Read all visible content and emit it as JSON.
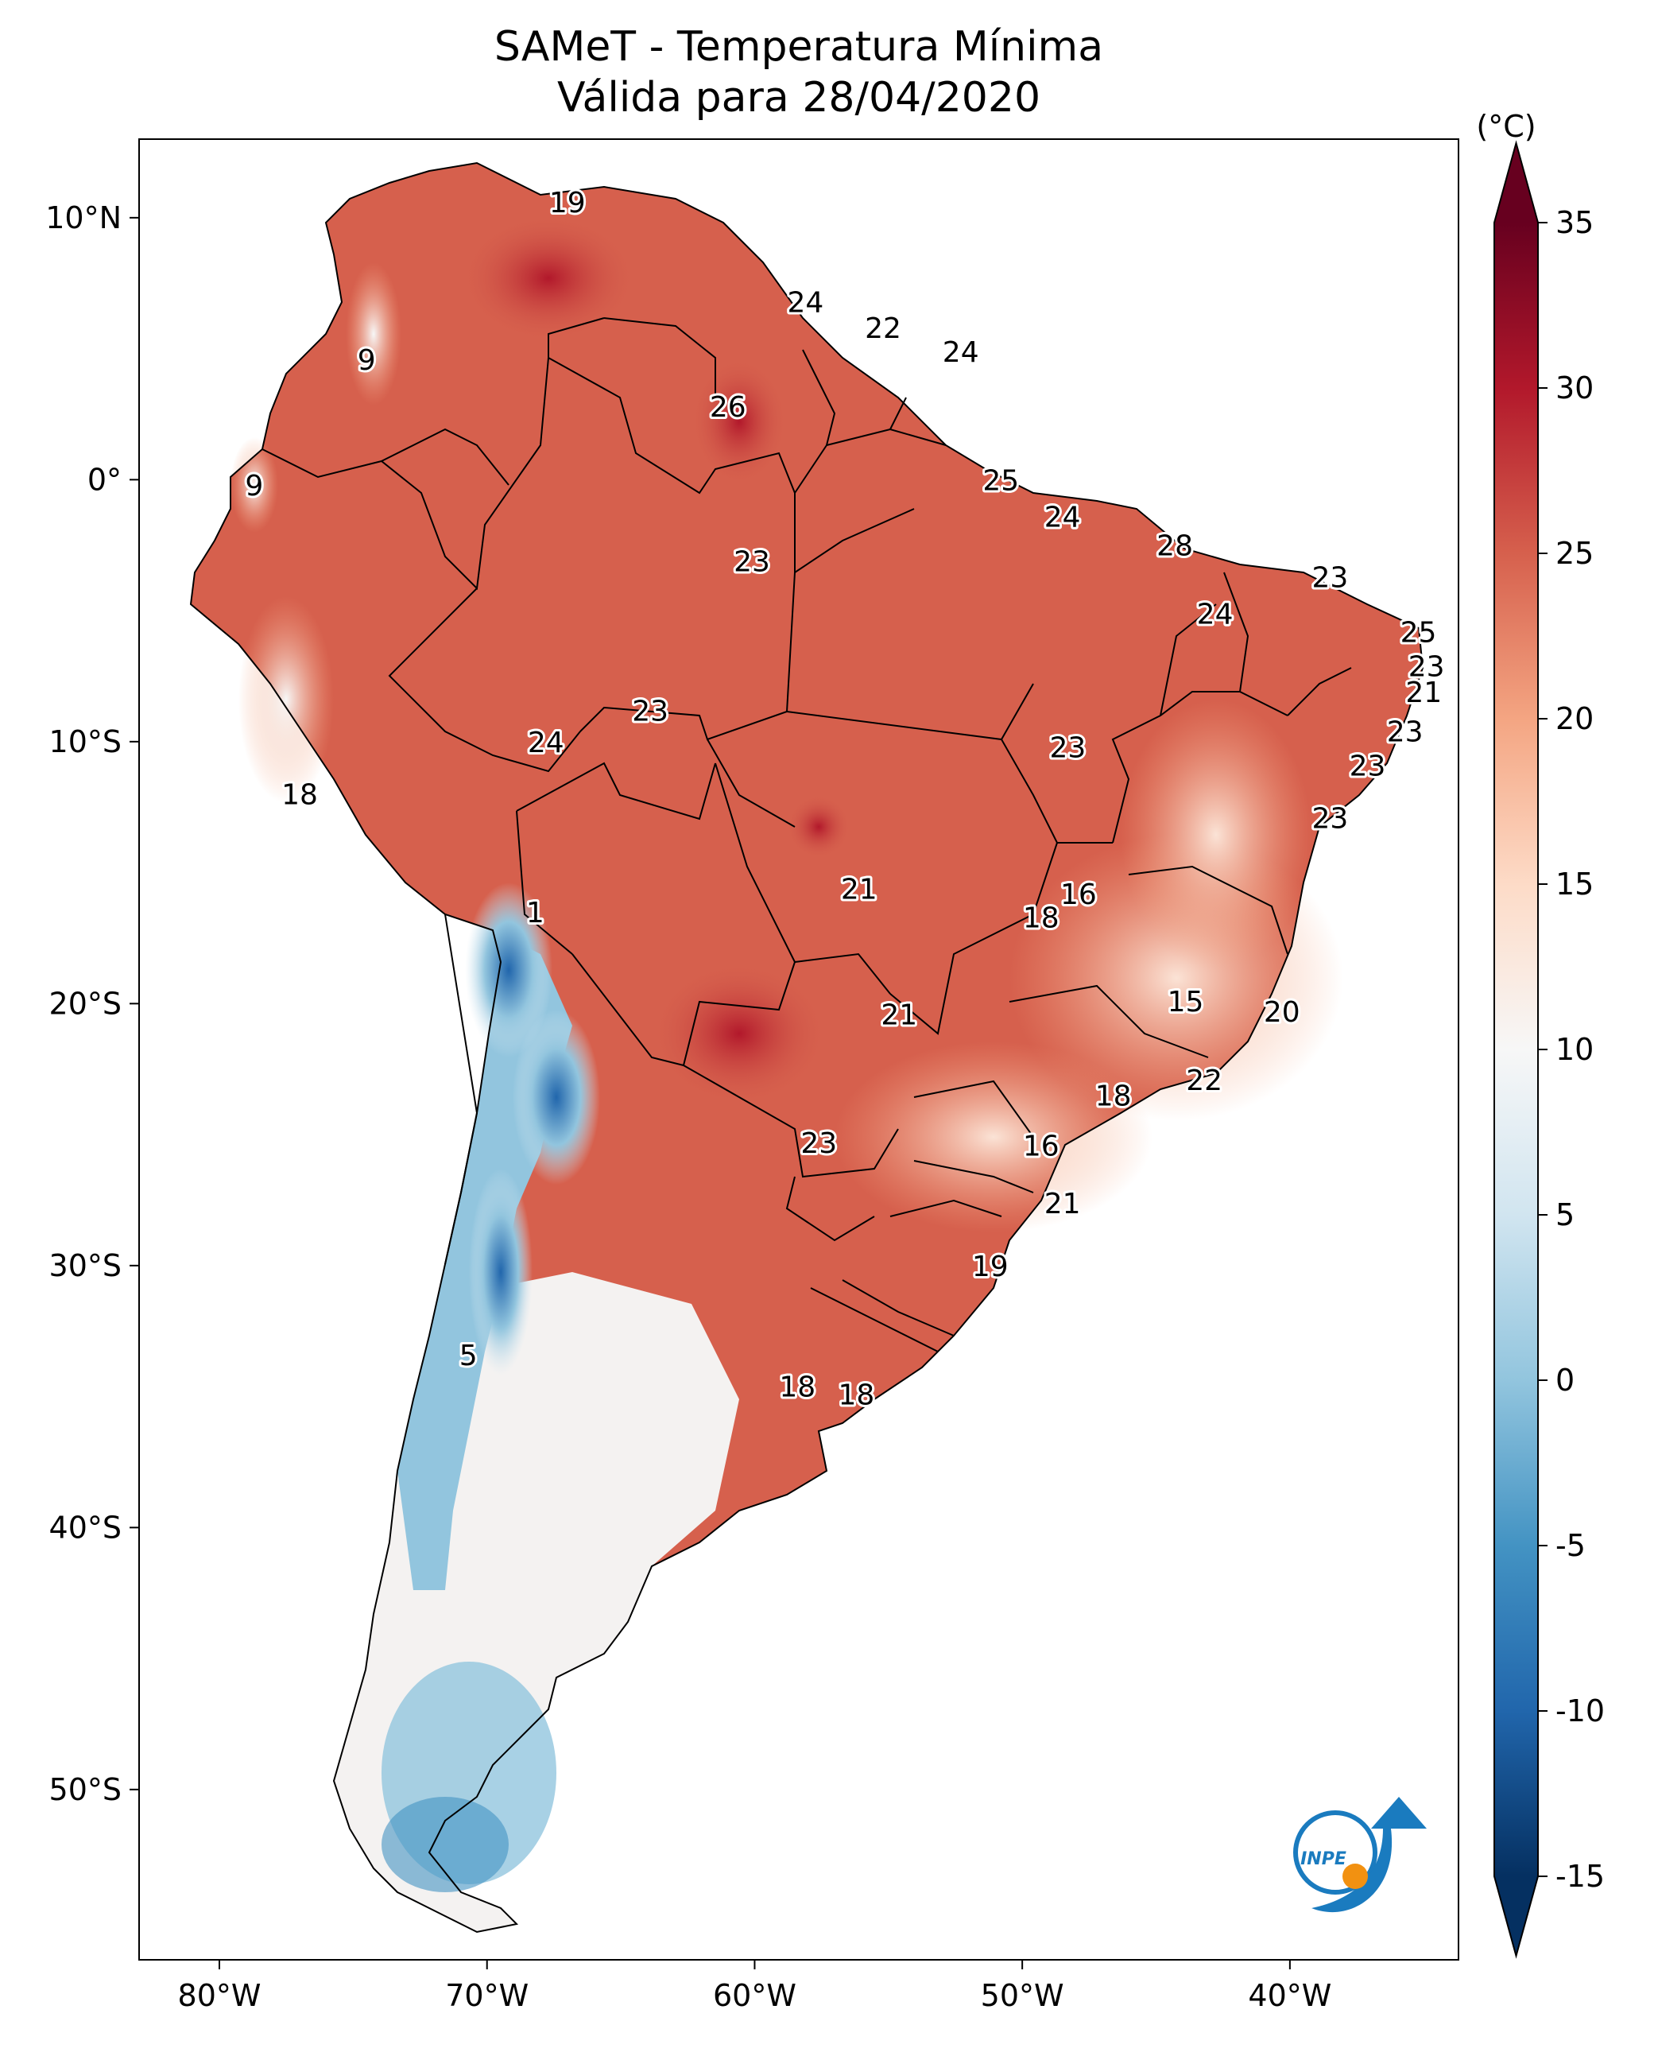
{
  "title": "SAMeT - Temperatura Mínima",
  "subtitle": "Válida para 28/04/2020",
  "map": {
    "extent": {
      "lon": [
        -83,
        -33.7
      ],
      "lat": [
        -56.5,
        13
      ]
    },
    "lon_ticks": [
      {
        "value": -80,
        "label": "80°W"
      },
      {
        "value": -70,
        "label": "70°W"
      },
      {
        "value": -60,
        "label": "60°W"
      },
      {
        "value": -50,
        "label": "50°W"
      },
      {
        "value": -40,
        "label": "40°W"
      }
    ],
    "lat_ticks": [
      {
        "value": 10,
        "label": "10°N"
      },
      {
        "value": 0,
        "label": "0°"
      },
      {
        "value": -10,
        "label": "10°S"
      },
      {
        "value": -20,
        "label": "20°S"
      },
      {
        "value": -30,
        "label": "30°S"
      },
      {
        "value": -40,
        "label": "40°S"
      },
      {
        "value": -50,
        "label": "50°S"
      }
    ],
    "station_labels": [
      {
        "lon": -67.0,
        "lat": 10.6,
        "text": "19"
      },
      {
        "lon": -74.5,
        "lat": 4.6,
        "text": "9"
      },
      {
        "lon": -78.7,
        "lat": -0.2,
        "text": "9"
      },
      {
        "lon": -61.0,
        "lat": 2.8,
        "text": "26"
      },
      {
        "lon": -58.1,
        "lat": 6.8,
        "text": "24"
      },
      {
        "lon": -55.2,
        "lat": 5.8,
        "text": "22"
      },
      {
        "lon": -52.3,
        "lat": 4.9,
        "text": "24"
      },
      {
        "lon": -50.8,
        "lat": 0.0,
        "text": "25"
      },
      {
        "lon": -48.5,
        "lat": -1.4,
        "text": "24"
      },
      {
        "lon": -44.3,
        "lat": -2.5,
        "text": "28"
      },
      {
        "lon": -38.5,
        "lat": -3.7,
        "text": "23"
      },
      {
        "lon": -42.8,
        "lat": -5.1,
        "text": "24"
      },
      {
        "lon": -35.2,
        "lat": -5.8,
        "text": "25"
      },
      {
        "lon": -34.9,
        "lat": -7.1,
        "text": "23"
      },
      {
        "lon": -35.0,
        "lat": -8.1,
        "text": "21"
      },
      {
        "lon": -35.7,
        "lat": -9.6,
        "text": "23"
      },
      {
        "lon": -37.1,
        "lat": -10.9,
        "text": "23"
      },
      {
        "lon": -38.5,
        "lat": -12.9,
        "text": "23"
      },
      {
        "lon": -60.1,
        "lat": -3.1,
        "text": "23"
      },
      {
        "lon": -63.9,
        "lat": -8.8,
        "text": "23"
      },
      {
        "lon": -67.8,
        "lat": -10.0,
        "text": "24"
      },
      {
        "lon": -48.3,
        "lat": -10.2,
        "text": "23"
      },
      {
        "lon": -77.0,
        "lat": -12.0,
        "text": "18"
      },
      {
        "lon": -68.2,
        "lat": -16.5,
        "text": "1"
      },
      {
        "lon": -56.1,
        "lat": -15.6,
        "text": "21"
      },
      {
        "lon": -47.9,
        "lat": -15.8,
        "text": "16"
      },
      {
        "lon": -49.3,
        "lat": -16.7,
        "text": "18"
      },
      {
        "lon": -43.9,
        "lat": -19.9,
        "text": "15"
      },
      {
        "lon": -40.3,
        "lat": -20.3,
        "text": "20"
      },
      {
        "lon": -54.6,
        "lat": -20.4,
        "text": "21"
      },
      {
        "lon": -43.2,
        "lat": -22.9,
        "text": "22"
      },
      {
        "lon": -46.6,
        "lat": -23.5,
        "text": "18"
      },
      {
        "lon": -57.6,
        "lat": -25.3,
        "text": "23"
      },
      {
        "lon": -49.3,
        "lat": -25.4,
        "text": "16"
      },
      {
        "lon": -48.5,
        "lat": -27.6,
        "text": "21"
      },
      {
        "lon": -51.2,
        "lat": -30.0,
        "text": "19"
      },
      {
        "lon": -58.4,
        "lat": -34.6,
        "text": "18"
      },
      {
        "lon": -56.2,
        "lat": -34.9,
        "text": "18"
      },
      {
        "lon": -70.7,
        "lat": -33.4,
        "text": "5"
      }
    ]
  },
  "colorbar": {
    "unit": "(°C)",
    "min": -15,
    "max": 35,
    "ticks": [
      "35",
      "30",
      "25",
      "20",
      "15",
      "10",
      "5",
      "0",
      "-5",
      "-10",
      "-15"
    ],
    "colors": [
      "#053061",
      "#2166ac",
      "#4393c3",
      "#92c5de",
      "#d1e5f0",
      "#f7f7f7",
      "#fddbc7",
      "#f4a582",
      "#d6604d",
      "#b2182b",
      "#67001f"
    ]
  },
  "logo": {
    "text": "INPE",
    "colors": [
      "#1a7bbf",
      "#f29111"
    ]
  }
}
